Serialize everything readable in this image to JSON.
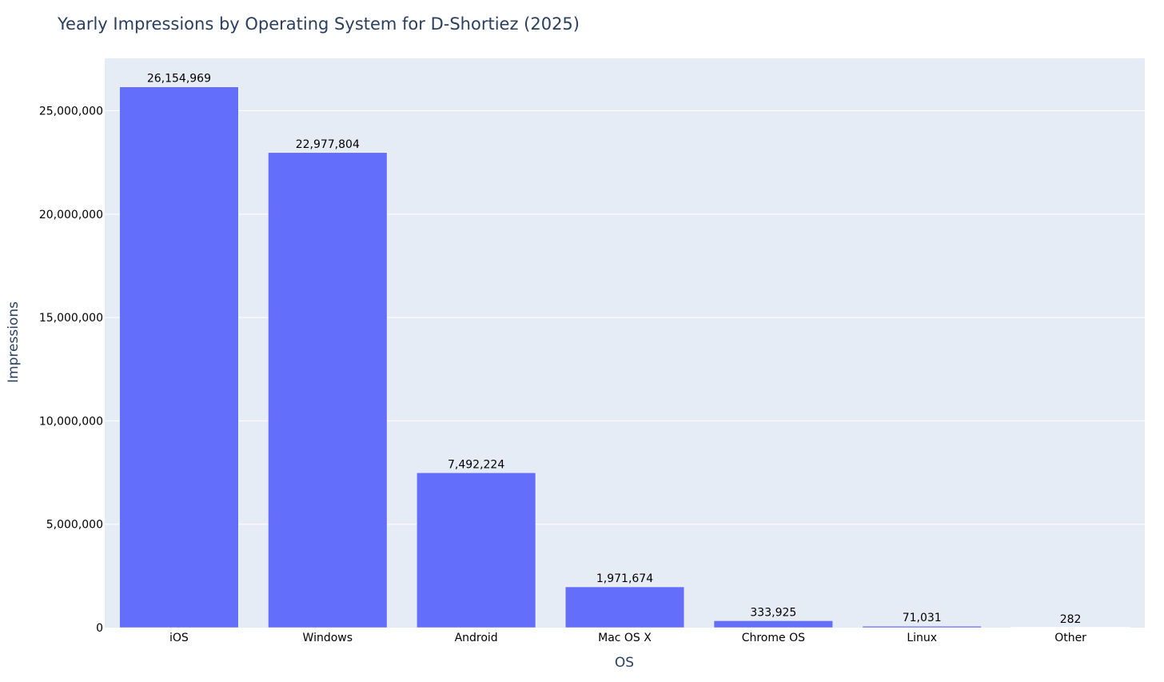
{
  "chart_data": {
    "type": "bar",
    "title": "Yearly Impressions by Operating System for D-Shortiez (2025)",
    "xlabel": "OS",
    "ylabel": "Impressions",
    "categories": [
      "iOS",
      "Windows",
      "Android",
      "Mac OS X",
      "Chrome OS",
      "Linux",
      "Other"
    ],
    "values": [
      26154969,
      22977804,
      7492224,
      1971674,
      333925,
      71031,
      282
    ],
    "value_labels": [
      "26,154,969",
      "22,977,804",
      "7,492,224",
      "1,971,674",
      "333,925",
      "71,031",
      "282"
    ],
    "ylim": [
      0,
      27534000
    ],
    "yticks": [
      0,
      5000000,
      10000000,
      15000000,
      20000000,
      25000000
    ],
    "ytick_labels": [
      "0",
      "5,000,000",
      "10,000,000",
      "15,000,000",
      "20,000,000",
      "25,000,000"
    ],
    "grid": true,
    "colors": {
      "bar": "#636efa",
      "plot_background": "#e5ecf6",
      "gridline": "#ffffff",
      "text": "#2a3f5f"
    }
  }
}
